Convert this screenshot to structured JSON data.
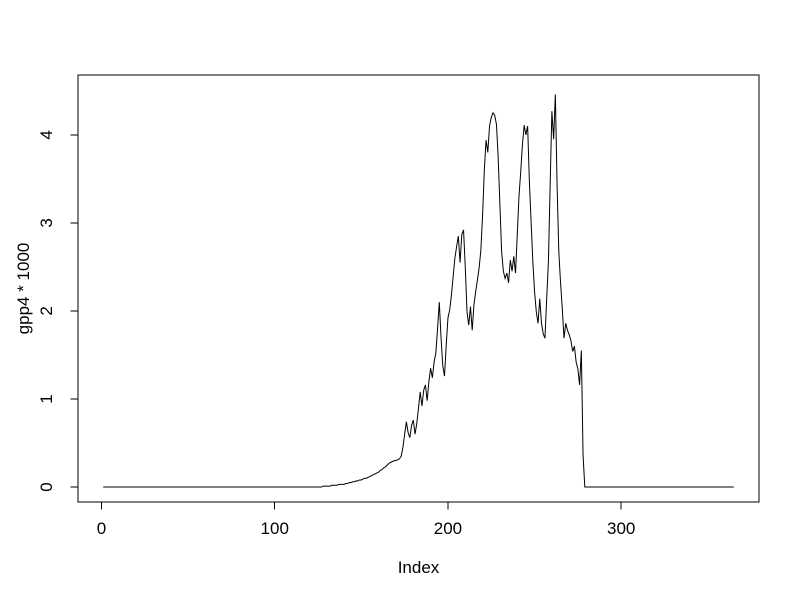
{
  "figure": {
    "background": "#ffffff",
    "line_color": "#000000",
    "text_color": "#000000"
  },
  "chart_data": {
    "type": "line",
    "title": "",
    "xlabel": "Index",
    "ylabel": "gpp4 * 1000",
    "grid": false,
    "legend": null,
    "x_start_index": 1,
    "xlim": [
      -13.56,
      379.56
    ],
    "ylim": [
      -0.17,
      4.68
    ],
    "xticks": [
      0,
      100,
      200,
      300
    ],
    "yticks": [
      0,
      1,
      2,
      3,
      4
    ],
    "series": [
      {
        "name": "gpp4 * 1000",
        "values": [
          0,
          0,
          0,
          0,
          0,
          0,
          0,
          0,
          0,
          0,
          0,
          0,
          0,
          0,
          0,
          0,
          0,
          0,
          0,
          0,
          0,
          0,
          0,
          0,
          0,
          0,
          0,
          0,
          0,
          0,
          0,
          0,
          0,
          0,
          0,
          0,
          0,
          0,
          0,
          0,
          0,
          0,
          0,
          0,
          0,
          0,
          0,
          0,
          0,
          0,
          0,
          0,
          0,
          0,
          0,
          0,
          0,
          0,
          0,
          0,
          0,
          0,
          0,
          0,
          0,
          0,
          0,
          0,
          0,
          0,
          0,
          0,
          0,
          0,
          0,
          0,
          0,
          0,
          0,
          0,
          0,
          0,
          0,
          0,
          0,
          0,
          0,
          0,
          0,
          0,
          0,
          0,
          0,
          0,
          0,
          0,
          0,
          0,
          0,
          0,
          0,
          0,
          0,
          0,
          0,
          0,
          0,
          0,
          0,
          0,
          0,
          0,
          0,
          0,
          0,
          0,
          0,
          0,
          0,
          0,
          0,
          0,
          0,
          0,
          0,
          0,
          0,
          0.01,
          0.01,
          0.01,
          0.01,
          0.01,
          0.02,
          0.02,
          0.02,
          0.02,
          0.03,
          0.03,
          0.03,
          0.03,
          0.04,
          0.04,
          0.05,
          0.05,
          0.06,
          0.06,
          0.07,
          0.07,
          0.08,
          0.08,
          0.09,
          0.1,
          0.1,
          0.11,
          0.12,
          0.13,
          0.14,
          0.15,
          0.16,
          0.17,
          0.19,
          0.2,
          0.22,
          0.23,
          0.25,
          0.27,
          0.28,
          0.29,
          0.3,
          0.3,
          0.31,
          0.32,
          0.35,
          0.45,
          0.6,
          0.74,
          0.62,
          0.56,
          0.7,
          0.76,
          0.6,
          0.72,
          0.9,
          1.08,
          0.92,
          1.1,
          1.16,
          0.98,
          1.2,
          1.35,
          1.24,
          1.42,
          1.52,
          1.8,
          2.1,
          1.7,
          1.38,
          1.26,
          1.61,
          1.92,
          2.01,
          2.18,
          2.39,
          2.6,
          2.73,
          2.85,
          2.55,
          2.87,
          2.92,
          2.5,
          1.99,
          1.84,
          2.05,
          1.78,
          2.07,
          2.22,
          2.35,
          2.49,
          2.69,
          3.09,
          3.6,
          3.94,
          3.8,
          4.1,
          4.2,
          4.25,
          4.22,
          4.12,
          3.74,
          3.2,
          2.67,
          2.45,
          2.37,
          2.43,
          2.32,
          2.58,
          2.45,
          2.62,
          2.43,
          2.86,
          3.3,
          3.58,
          3.89,
          4.11,
          4.0,
          4.1,
          3.47,
          3.01,
          2.56,
          2.22,
          1.99,
          1.86,
          2.14,
          1.86,
          1.74,
          1.69,
          2.14,
          2.56,
          3.43,
          4.27,
          3.95,
          4.46,
          3.43,
          2.67,
          2.32,
          2.03,
          1.69,
          1.86,
          1.78,
          1.73,
          1.66,
          1.54,
          1.6,
          1.42,
          1.34,
          1.16,
          1.55,
          0.36,
          0,
          0,
          0,
          0,
          0,
          0,
          0,
          0,
          0,
          0,
          0,
          0,
          0,
          0,
          0,
          0,
          0,
          0,
          0,
          0,
          0,
          0,
          0,
          0,
          0,
          0,
          0,
          0,
          0,
          0,
          0,
          0,
          0,
          0,
          0,
          0,
          0,
          0,
          0,
          0,
          0,
          0,
          0,
          0,
          0,
          0,
          0,
          0,
          0,
          0,
          0,
          0,
          0,
          0,
          0,
          0,
          0,
          0,
          0,
          0,
          0,
          0,
          0,
          0,
          0,
          0,
          0,
          0,
          0,
          0,
          0,
          0,
          0,
          0,
          0,
          0,
          0,
          0,
          0,
          0,
          0,
          0,
          0,
          0,
          0,
          0,
          0
        ]
      }
    ]
  }
}
